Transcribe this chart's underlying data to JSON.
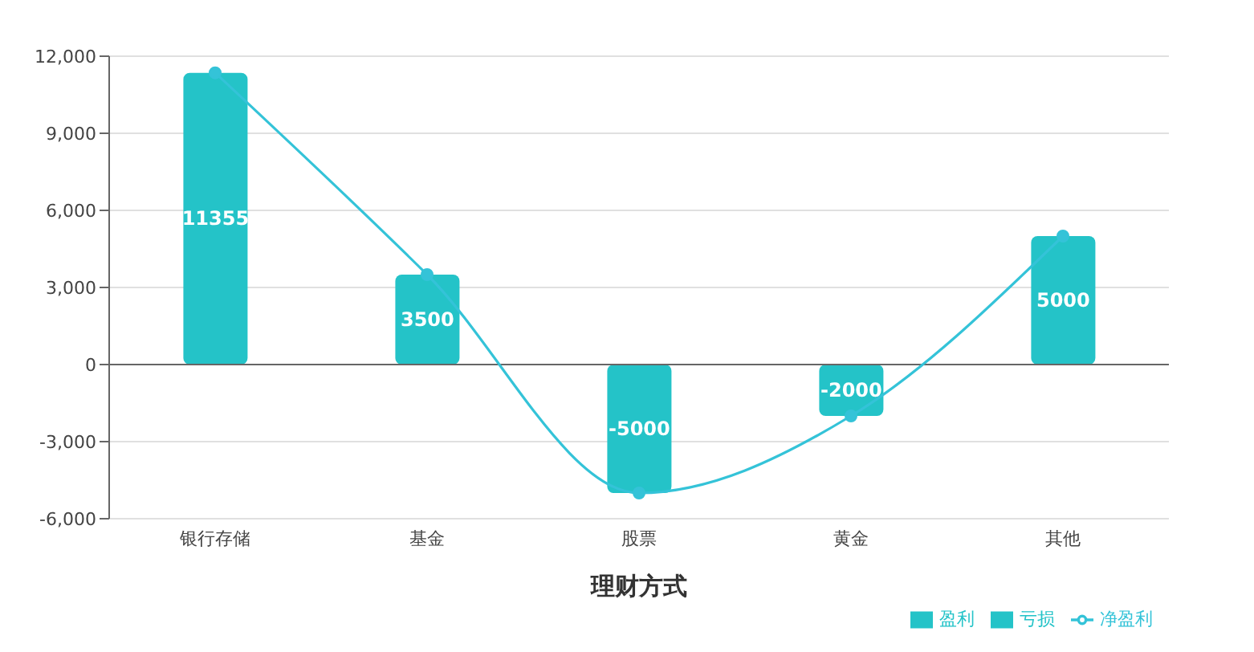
{
  "chart_data": {
    "type": "bar",
    "xlabel": "理财方式",
    "categories": [
      "银行存储",
      "基金",
      "股票",
      "黄金",
      "其他"
    ],
    "series": [
      {
        "name": "盈利",
        "color": "#24c3c8",
        "values": [
          11355,
          3500,
          null,
          null,
          5000
        ],
        "value_labels": [
          "11355",
          "3500",
          null,
          null,
          "5000"
        ]
      },
      {
        "name": "亏损",
        "color": "#24c3c8",
        "values": [
          null,
          null,
          -5000,
          -2000,
          null
        ],
        "value_labels": [
          null,
          null,
          "-5000",
          "-2000",
          null
        ]
      },
      {
        "name": "净盈利",
        "type": "line",
        "color": "#34c3d8",
        "values": [
          11355,
          3500,
          -5000,
          -2000,
          5000
        ]
      }
    ],
    "stacked": true,
    "marker": "circle",
    "ylim": [
      -6000,
      12000
    ],
    "yticks": [
      {
        "value": -6000,
        "label": "-6,000"
      },
      {
        "value": -3000,
        "label": "-3,000"
      },
      0,
      {
        "value": 3000,
        "label": "3,000"
      },
      {
        "value": 6000,
        "label": "6,000"
      },
      {
        "value": 9000,
        "label": "9,000"
      },
      {
        "value": 12000,
        "label": "12,000"
      }
    ],
    "grid": "y",
    "legend": "bottom right"
  }
}
